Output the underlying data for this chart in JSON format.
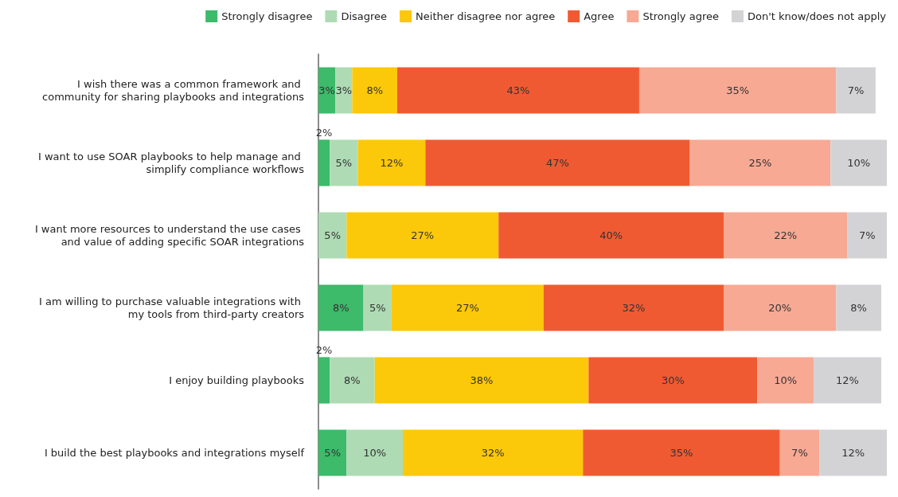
{
  "chart_data": {
    "type": "bar",
    "orientation": "horizontal",
    "stacked": true,
    "legend": "top",
    "grid": false,
    "categories": [
      "I wish there was a common framework and community for sharing playbooks and integrations",
      "I want to use SOAR playbooks to help manage and simplify compliance workflows",
      "I want more resources to understand the use cases and value of adding specific SOAR integrations",
      "I am willing to purchase valuable integrations with my tools from third-party creators",
      "I enjoy building playbooks",
      "I build the best playbooks and integrations myself"
    ],
    "series": [
      {
        "name": "Strongly disagree",
        "color": "#3dba6a",
        "values": [
          3,
          2,
          null,
          8,
          2,
          5
        ],
        "value_labels": [
          "3%",
          "2%",
          null,
          "8%",
          "2%",
          "5%"
        ]
      },
      {
        "name": "Disagree",
        "color": "#aedbb4",
        "values": [
          3,
          5,
          5,
          5,
          8,
          10
        ],
        "value_labels": [
          "3%",
          "5%",
          "5%",
          "5%",
          "8%",
          "10%"
        ]
      },
      {
        "name": "Neither disagree nor agree",
        "color": "#fcc80a",
        "values": [
          8,
          12,
          27,
          27,
          38,
          32
        ],
        "value_labels": [
          "8%",
          "12%",
          "27%",
          "27%",
          "38%",
          "32%"
        ]
      },
      {
        "name": "Agree",
        "color": "#f05a32",
        "values": [
          43,
          47,
          40,
          32,
          30,
          35
        ],
        "value_labels": [
          "43%",
          "47%",
          "40%",
          "32%",
          "30%",
          "35%"
        ]
      },
      {
        "name": "Strongly agree",
        "color": "#f7a994",
        "values": [
          35,
          25,
          22,
          20,
          10,
          7
        ],
        "value_labels": [
          "35%",
          "25%",
          "22%",
          "20%",
          "10%",
          "7%"
        ]
      },
      {
        "name": "Don't know/does not apply",
        "color": "#d3d3d5",
        "values": [
          7,
          10,
          7,
          8,
          12,
          12
        ],
        "value_labels": [
          "7%",
          "10%",
          "7%",
          "8%",
          "12%",
          "12%"
        ]
      }
    ]
  }
}
